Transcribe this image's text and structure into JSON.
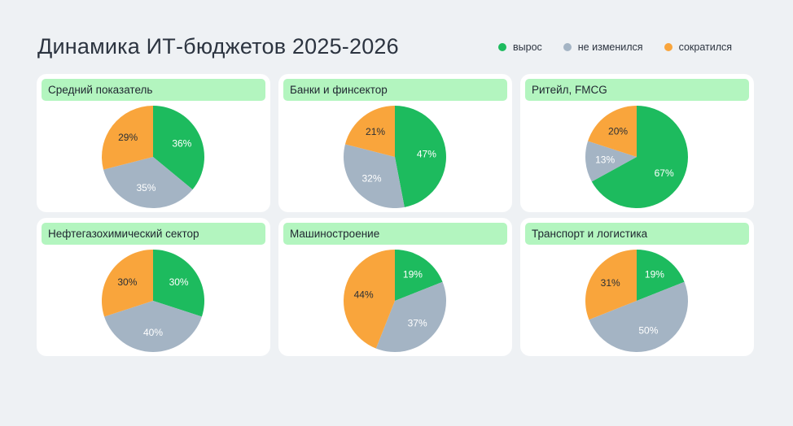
{
  "title": "Динамика ИТ-бюджетов 2025-2026",
  "legend": [
    {
      "label": "вырос",
      "color": "#1dbb5e"
    },
    {
      "label": "не изменился",
      "color": "#a4b4c4"
    },
    {
      "label": "сократился",
      "color": "#f9a53c"
    }
  ],
  "chart_data": [
    {
      "type": "pie",
      "title": "Средний показатель",
      "slices": [
        {
          "label": "вырос",
          "value": 36
        },
        {
          "label": "не изменился",
          "value": 35
        },
        {
          "label": "сократился",
          "value": 29
        }
      ]
    },
    {
      "type": "pie",
      "title": "Банки и финсектор",
      "slices": [
        {
          "label": "вырос",
          "value": 47
        },
        {
          "label": "не изменился",
          "value": 32
        },
        {
          "label": "сократился",
          "value": 21
        }
      ]
    },
    {
      "type": "pie",
      "title": "Ритейл, FMCG",
      "slices": [
        {
          "label": "вырос",
          "value": 67
        },
        {
          "label": "не изменился",
          "value": 13
        },
        {
          "label": "сократился",
          "value": 20
        }
      ]
    },
    {
      "type": "pie",
      "title": "Нефтегазохимический сектор",
      "slices": [
        {
          "label": "вырос",
          "value": 30
        },
        {
          "label": "не изменился",
          "value": 40
        },
        {
          "label": "сократился",
          "value": 30
        }
      ]
    },
    {
      "type": "pie",
      "title": "Машиностроение",
      "slices": [
        {
          "label": "вырос",
          "value": 19
        },
        {
          "label": "не изменился",
          "value": 37
        },
        {
          "label": "сократился",
          "value": 44
        }
      ]
    },
    {
      "type": "pie",
      "title": "Транспорт и логистика",
      "slices": [
        {
          "label": "вырос",
          "value": 19
        },
        {
          "label": "не изменился",
          "value": 50
        },
        {
          "label": "сократился",
          "value": 31
        }
      ]
    }
  ],
  "value_suffix": "%"
}
